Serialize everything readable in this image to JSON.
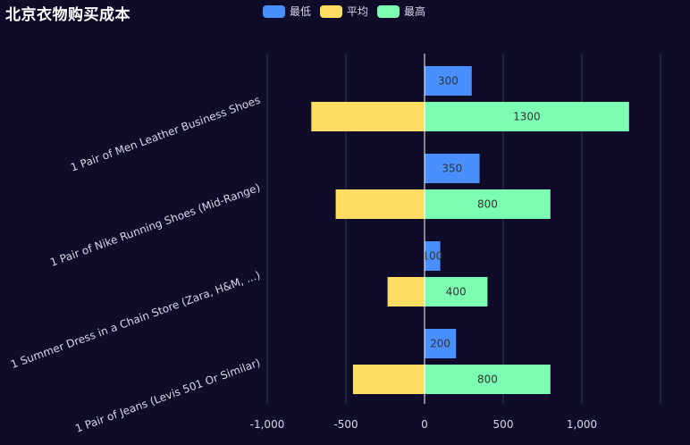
{
  "title": "北京衣物购买成本",
  "legend": [
    {
      "name": "最低",
      "color": "#4a8fff"
    },
    {
      "name": "平均",
      "color": "#ffdd63"
    },
    {
      "name": "最高",
      "color": "#7dffb3"
    }
  ],
  "colors": {
    "background": "#0f0c29",
    "grid": "#3a3a5a",
    "axis": "#ffffff",
    "text": "#d8d8e8",
    "value_text": "#333333"
  },
  "chart_data": {
    "type": "bar",
    "orientation": "horizontal",
    "title": "北京衣物购买成本",
    "categories": [
      "1 Pair of Men Leather Business Shoes",
      "1 Pair of Nike Running Shoes (Mid-Range)",
      "1 Summer Dress in a Chain Store (Zara, H&M, ...)",
      "1 Pair of Jeans (Levis 501 Or Similar)"
    ],
    "series": [
      {
        "name": "最低",
        "values": [
          300,
          350,
          100,
          200
        ],
        "show_labels": true
      },
      {
        "name": "平均",
        "values": [
          -720,
          -565,
          -235,
          -455
        ],
        "show_labels": false
      },
      {
        "name": "最高",
        "values": [
          1300,
          800,
          400,
          800
        ],
        "show_labels": true
      }
    ],
    "xlim": [
      -1000,
      1500
    ],
    "ticks": [
      -1000,
      -500,
      0,
      500,
      1000
    ],
    "tick_labels": [
      "-1,000",
      "-500",
      "0",
      "500",
      "1,000"
    ],
    "grid": true
  }
}
